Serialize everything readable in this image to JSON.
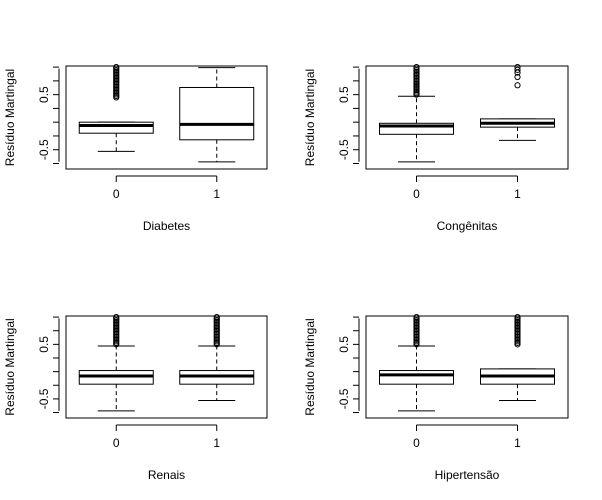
{
  "chart_data": [
    {
      "type": "box",
      "xlabel": "Diabetes",
      "ylabel": "Resíduo Martingal",
      "ylim": [
        -0.85,
        1.02
      ],
      "yticks": [
        {
          "value": -0.5,
          "label": "-0.5"
        },
        {
          "value": 0.5,
          "label": "0.5"
        }
      ],
      "categories": [
        "0",
        "1"
      ],
      "boxes": [
        {
          "whisker_low": -0.53,
          "q1": -0.2,
          "median": -0.06,
          "q3": 0.0,
          "whisker_high": 0.0,
          "outliers_range": [
            0.45,
            1.0
          ]
        },
        {
          "whisker_low": -0.72,
          "q1": -0.32,
          "median": -0.04,
          "q3": 0.63,
          "whisker_high": 0.99,
          "outliers": []
        }
      ]
    },
    {
      "type": "box",
      "xlabel": "Congênitas",
      "ylabel": "Resíduo Martingal",
      "ylim": [
        -0.85,
        1.02
      ],
      "yticks": [
        {
          "value": -0.5,
          "label": "-0.5"
        },
        {
          "value": 0.5,
          "label": "0.5"
        }
      ],
      "categories": [
        "0",
        "1"
      ],
      "boxes": [
        {
          "whisker_low": -0.72,
          "q1": -0.22,
          "median": -0.07,
          "q3": -0.02,
          "whisker_high": 0.47,
          "outliers_range": [
            0.5,
            1.0
          ]
        },
        {
          "whisker_low": -0.33,
          "q1": -0.09,
          "median": -0.02,
          "q3": 0.06,
          "whisker_high": 0.06,
          "outliers": [
            0.67,
            0.82,
            0.9,
            0.95,
            1.0
          ]
        }
      ]
    },
    {
      "type": "box",
      "xlabel": "Renais",
      "ylabel": "Resíduo Martingal",
      "ylim": [
        -0.85,
        1.02
      ],
      "yticks": [
        {
          "value": -0.5,
          "label": "-0.5"
        },
        {
          "value": 0.5,
          "label": "0.5"
        }
      ],
      "categories": [
        "0",
        "1"
      ],
      "boxes": [
        {
          "whisker_low": -0.72,
          "q1": -0.23,
          "median": -0.08,
          "q3": 0.02,
          "whisker_high": 0.47,
          "outliers_range": [
            0.5,
            1.0
          ]
        },
        {
          "whisker_low": -0.53,
          "q1": -0.23,
          "median": -0.08,
          "q3": 0.02,
          "whisker_high": 0.47,
          "outliers_range": [
            0.5,
            1.0
          ]
        }
      ]
    },
    {
      "type": "box",
      "xlabel": "Hipertensão",
      "ylabel": "Resíduo Martingal",
      "ylim": [
        -0.85,
        1.02
      ],
      "yticks": [
        {
          "value": -0.5,
          "label": "-0.5"
        },
        {
          "value": 0.5,
          "label": "0.5"
        }
      ],
      "categories": [
        "0",
        "1"
      ],
      "boxes": [
        {
          "whisker_low": -0.72,
          "q1": -0.23,
          "median": -0.06,
          "q3": 0.02,
          "whisker_high": 0.47,
          "outliers_range": [
            0.5,
            1.0
          ]
        },
        {
          "whisker_low": -0.53,
          "q1": -0.23,
          "median": -0.08,
          "q3": 0.05,
          "whisker_high": 0.05,
          "outliers_range": [
            0.5,
            1.0
          ]
        }
      ]
    }
  ]
}
